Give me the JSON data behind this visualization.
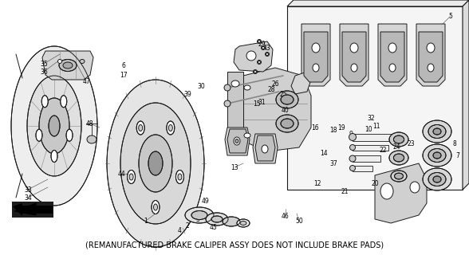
{
  "caption": "(REMANUFACTURED BRAKE CALIPER ASSY DOES NOT INCLUDE BRAKE PADS)",
  "caption_fontsize": 7.0,
  "bg_color": "#ffffff",
  "fig_width": 5.88,
  "fig_height": 3.2,
  "dpi": 100,
  "line_color": "#1a1a1a",
  "text_color": "#000000",
  "lw": 0.7,
  "thin_lw": 0.4,
  "gray_fill": "#d8d8d8",
  "light_gray": "#eeeeee",
  "mid_gray": "#c8c8c8",
  "dark_gray": "#a0a0a0"
}
